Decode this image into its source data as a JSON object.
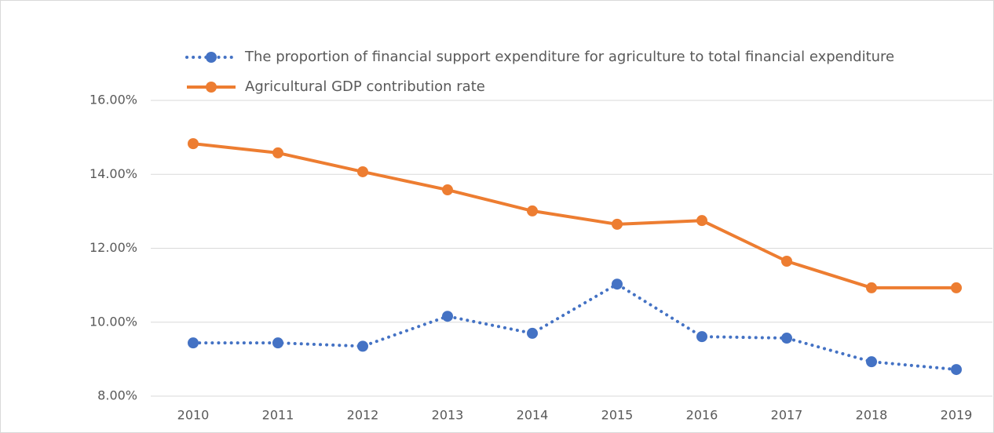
{
  "chart_data": {
    "type": "line",
    "categories": [
      "2010",
      "2011",
      "2012",
      "2013",
      "2014",
      "2015",
      "2016",
      "2017",
      "2018",
      "2019"
    ],
    "series": [
      {
        "name": "The proportion of financial support expenditure for agriculture to total financial expenditure",
        "color": "#4472c4",
        "style": "dotted",
        "values": [
          9.44,
          9.44,
          9.35,
          10.16,
          9.7,
          11.03,
          9.61,
          9.57,
          8.93,
          8.72
        ]
      },
      {
        "name": "Agricultural GDP contribution rate",
        "color": "#ed7d31",
        "style": "solid",
        "values": [
          14.83,
          14.58,
          14.07,
          13.58,
          13.01,
          12.65,
          12.75,
          11.65,
          10.93,
          10.93
        ]
      }
    ],
    "ylim": [
      8,
      16
    ],
    "yticks": [
      {
        "value": 8,
        "label": "8.00%"
      },
      {
        "value": 10,
        "label": "10.00%"
      },
      {
        "value": 12,
        "label": "12.00%"
      },
      {
        "value": 14,
        "label": "14.00%"
      },
      {
        "value": 16,
        "label": "16.00%"
      }
    ],
    "grid": true,
    "legend": "top"
  }
}
